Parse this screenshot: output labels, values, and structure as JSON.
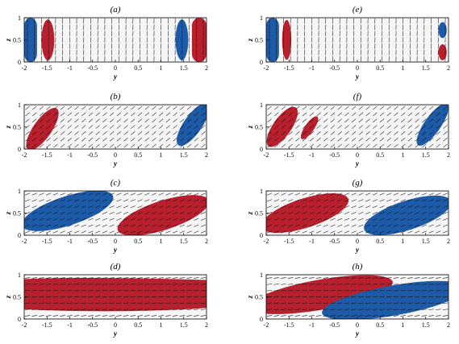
{
  "figure": {
    "colors": {
      "red": "#b8202e",
      "blue": "#1d5ba8",
      "background": "#f5f5f5",
      "arrow": "#111111"
    },
    "panels": [
      {
        "label": "(a)",
        "xlabel": "y",
        "ylabel": "z",
        "x_ticks": [
          "-2",
          "-1.5",
          "-1",
          "-0.5",
          "0",
          "0.5",
          "1",
          "1.5",
          "2"
        ],
        "y_ticks": [
          "0",
          "0.5",
          "1"
        ]
      },
      {
        "label": "(b)",
        "xlabel": "y",
        "ylabel": "z",
        "x_ticks": [
          "-2",
          "-1.5",
          "-1",
          "-0.5",
          "0",
          "0.5",
          "1",
          "1.5",
          "2"
        ],
        "y_ticks": [
          "0",
          "0.5",
          "1"
        ]
      },
      {
        "label": "(c)",
        "xlabel": "y",
        "ylabel": "z",
        "x_ticks": [
          "-2",
          "-1.5",
          "-1",
          "-0.5",
          "0",
          "0.5",
          "1",
          "1.5",
          "2"
        ],
        "y_ticks": [
          "0",
          "0.5",
          "1"
        ]
      },
      {
        "label": "(d)",
        "xlabel": "y",
        "ylabel": "z",
        "x_ticks": [
          "-2",
          "-1.5",
          "-1",
          "-0.5",
          "0",
          "0.5",
          "1",
          "1.5",
          "2"
        ],
        "y_ticks": [
          "0",
          "0.5",
          "1"
        ]
      },
      {
        "label": "(e)",
        "xlabel": "y",
        "ylabel": "z",
        "x_ticks": [
          "-2",
          "-1.5",
          "-1",
          "-0.5",
          "0",
          "0.5",
          "1",
          "1.5",
          "2"
        ],
        "y_ticks": [
          "0",
          "0.5",
          "1"
        ]
      },
      {
        "label": "(f)",
        "xlabel": "y",
        "ylabel": "z",
        "x_ticks": [
          "-2",
          "-1.5",
          "-1",
          "-0.5",
          "0",
          "0.5",
          "1",
          "1.5",
          "2"
        ],
        "y_ticks": [
          "0",
          "0.5",
          "1"
        ]
      },
      {
        "label": "(g)",
        "xlabel": "y",
        "ylabel": "z",
        "x_ticks": [
          "-2",
          "-1.5",
          "-1",
          "-0.5",
          "0",
          "0.5",
          "1",
          "1.5",
          "2"
        ],
        "y_ticks": [
          "0",
          "0.5",
          "1"
        ]
      },
      {
        "label": "(h)",
        "xlabel": "y",
        "ylabel": "z",
        "x_ticks": [
          "-2",
          "-1.5",
          "-1",
          "-0.5",
          "0",
          "0.5",
          "1",
          "1.5",
          "2"
        ],
        "y_ticks": [
          "0",
          "0.5",
          "1"
        ]
      }
    ]
  },
  "chart_data": [
    {
      "type": "heatmap",
      "panel": "(a)",
      "xlabel": "y",
      "ylabel": "z",
      "xlim": [
        -2,
        2
      ],
      "ylim": [
        0,
        1
      ],
      "arrow_slope": "vertical",
      "regions": [
        {
          "color": "blue",
          "y": [
            -2.0,
            -1.72
          ],
          "z": [
            0.0,
            1.0
          ]
        },
        {
          "color": "red",
          "y": [
            -1.62,
            -1.35
          ],
          "z": [
            0.05,
            0.95
          ]
        },
        {
          "color": "blue",
          "y": [
            1.32,
            1.6
          ],
          "z": [
            0.05,
            0.95
          ]
        },
        {
          "color": "red",
          "y": [
            1.68,
            2.0
          ],
          "z": [
            0.0,
            1.0
          ]
        }
      ]
    },
    {
      "type": "heatmap",
      "panel": "(b)",
      "xlabel": "y",
      "ylabel": "z",
      "xlim": [
        -2,
        2
      ],
      "ylim": [
        0,
        1
      ],
      "arrow_slope": "steep",
      "regions": [
        {
          "color": "red",
          "y": [
            -2.0,
            -1.1
          ],
          "z": [
            0.0,
            1.0
          ]
        },
        {
          "color": "blue",
          "y": [
            1.3,
            2.0
          ],
          "z": [
            0.05,
            1.0
          ]
        }
      ]
    },
    {
      "type": "heatmap",
      "panel": "(c)",
      "xlabel": "y",
      "ylabel": "z",
      "xlim": [
        -2,
        2
      ],
      "ylim": [
        0,
        1
      ],
      "arrow_slope": "shallow",
      "regions": [
        {
          "color": "blue",
          "y": [
            -2.0,
            -0.2
          ],
          "z": [
            0.05,
            0.95
          ]
        },
        {
          "color": "red",
          "y": [
            0.1,
            2.0
          ],
          "z": [
            0.0,
            0.95
          ]
        }
      ]
    },
    {
      "type": "heatmap",
      "panel": "(d)",
      "xlabel": "y",
      "ylabel": "z",
      "xlim": [
        -2,
        2
      ],
      "ylim": [
        0,
        1
      ],
      "arrow_slope": "flat",
      "regions": [
        {
          "color": "red",
          "y": [
            -2.0,
            2.0
          ],
          "z": [
            0.12,
            0.92
          ]
        }
      ]
    },
    {
      "type": "heatmap",
      "panel": "(e)",
      "xlabel": "y",
      "ylabel": "z",
      "xlim": [
        -2,
        2
      ],
      "ylim": [
        0,
        1
      ],
      "arrow_slope": "vertical",
      "regions": [
        {
          "color": "blue",
          "y": [
            -2.0,
            -1.72
          ],
          "z": [
            0.0,
            1.0
          ]
        },
        {
          "color": "red",
          "y": [
            -1.65,
            -1.45
          ],
          "z": [
            0.05,
            0.95
          ]
        },
        {
          "color": "blue",
          "y": [
            1.78,
            1.95
          ],
          "z": [
            0.55,
            0.9
          ]
        },
        {
          "color": "red",
          "y": [
            1.8,
            1.95
          ],
          "z": [
            0.05,
            0.4
          ]
        }
      ]
    },
    {
      "type": "heatmap",
      "panel": "(f)",
      "xlabel": "y",
      "ylabel": "z",
      "xlim": [
        -2,
        2
      ],
      "ylim": [
        0,
        1
      ],
      "arrow_slope": "steep",
      "regions": [
        {
          "color": "red",
          "y": [
            -2.0,
            -1.3
          ],
          "z": [
            0.0,
            1.0
          ]
        },
        {
          "color": "red",
          "y": [
            -1.3,
            -0.85
          ],
          "z": [
            0.15,
            0.75
          ]
        },
        {
          "color": "blue",
          "y": [
            1.3,
            2.0
          ],
          "z": [
            0.0,
            1.0
          ]
        }
      ]
    },
    {
      "type": "heatmap",
      "panel": "(g)",
      "xlabel": "y",
      "ylabel": "z",
      "xlim": [
        -2,
        2
      ],
      "ylim": [
        0,
        1
      ],
      "arrow_slope": "shallow",
      "regions": [
        {
          "color": "red",
          "y": [
            -2.0,
            -0.3
          ],
          "z": [
            0.0,
            0.95
          ]
        },
        {
          "color": "blue",
          "y": [
            0.2,
            2.0
          ],
          "z": [
            0.0,
            0.95
          ]
        }
      ]
    },
    {
      "type": "heatmap",
      "panel": "(h)",
      "xlabel": "y",
      "ylabel": "z",
      "xlim": [
        -2,
        2
      ],
      "ylim": [
        0,
        1
      ],
      "arrow_slope": "flat",
      "regions": [
        {
          "color": "red",
          "y": [
            -2.0,
            0.6
          ],
          "z": [
            0.05,
            0.95
          ]
        },
        {
          "color": "blue",
          "y": [
            -0.6,
            2.0
          ],
          "z": [
            0.0,
            0.95
          ]
        }
      ]
    }
  ]
}
